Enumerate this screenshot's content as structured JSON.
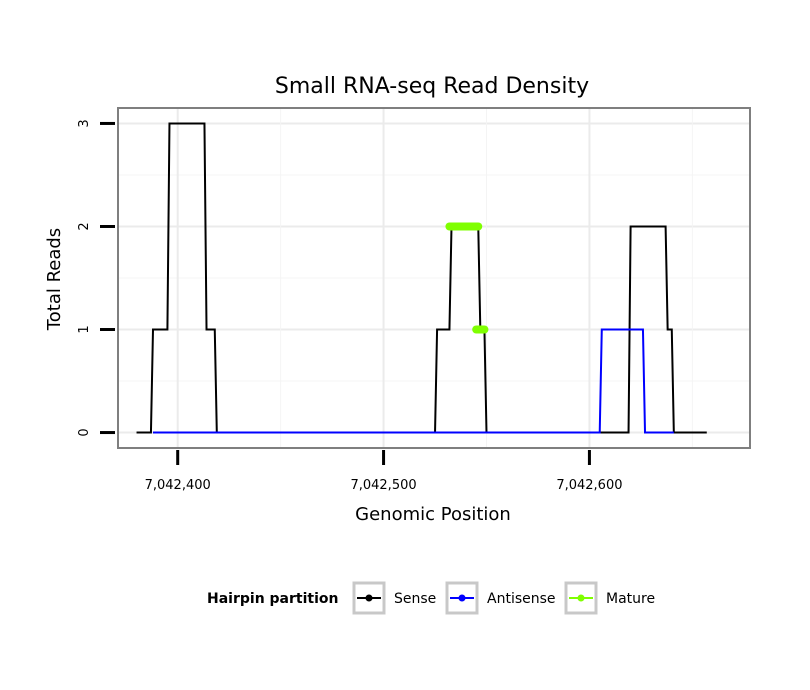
{
  "chart_data": {
    "type": "line",
    "title": "Small RNA-seq Read Density",
    "xlabel": "Genomic Position",
    "ylabel": "Total Reads",
    "xlim": [
      7042371,
      7042678
    ],
    "ylim": [
      -0.15,
      3.15
    ],
    "x_ticks": [
      7042400,
      7042500,
      7042600
    ],
    "x_tick_labels": [
      "7,042,400",
      "7,042,500",
      "7,042,600"
    ],
    "y_ticks": [
      0,
      1,
      2,
      3
    ],
    "y_tick_labels": [
      "0",
      "1",
      "2",
      "3"
    ],
    "grid": true,
    "legend": {
      "title": "Hairpin partition",
      "position": "bottom",
      "entries": [
        {
          "label": "Sense",
          "color": "#000000"
        },
        {
          "label": "Antisense",
          "color": "#0000ff"
        },
        {
          "label": "Mature",
          "color": "#7fff00"
        }
      ]
    },
    "series": [
      {
        "name": "Sense",
        "color": "#000000",
        "x": [
          7042380,
          7042387,
          7042388,
          7042395,
          7042396,
          7042413,
          7042414,
          7042418,
          7042419,
          7042525,
          7042526,
          7042532,
          7042533,
          7042546,
          7042547,
          7042549,
          7042550,
          7042619,
          7042620,
          7042637,
          7042638,
          7042640,
          7042641,
          7042657
        ],
        "values": [
          0,
          0,
          1,
          1,
          3,
          3,
          1,
          1,
          0,
          0,
          1,
          1,
          2,
          2,
          1,
          1,
          0,
          0,
          2,
          2,
          1,
          1,
          0,
          0
        ]
      },
      {
        "name": "Antisense",
        "color": "#0000ff",
        "x": [
          7042388,
          7042419,
          7042525,
          7042550,
          7042605,
          7042606,
          7042626,
          7042627,
          7042641
        ],
        "values": [
          0,
          0,
          0,
          0,
          0,
          1,
          1,
          0,
          0
        ]
      },
      {
        "name": "Mature",
        "color": "#7fff00",
        "segments": [
          {
            "x": [
              7042532,
              7042546
            ],
            "values": [
              2,
              2
            ]
          },
          {
            "x": [
              7042545,
              7042549
            ],
            "values": [
              1,
              1
            ]
          }
        ]
      }
    ]
  }
}
